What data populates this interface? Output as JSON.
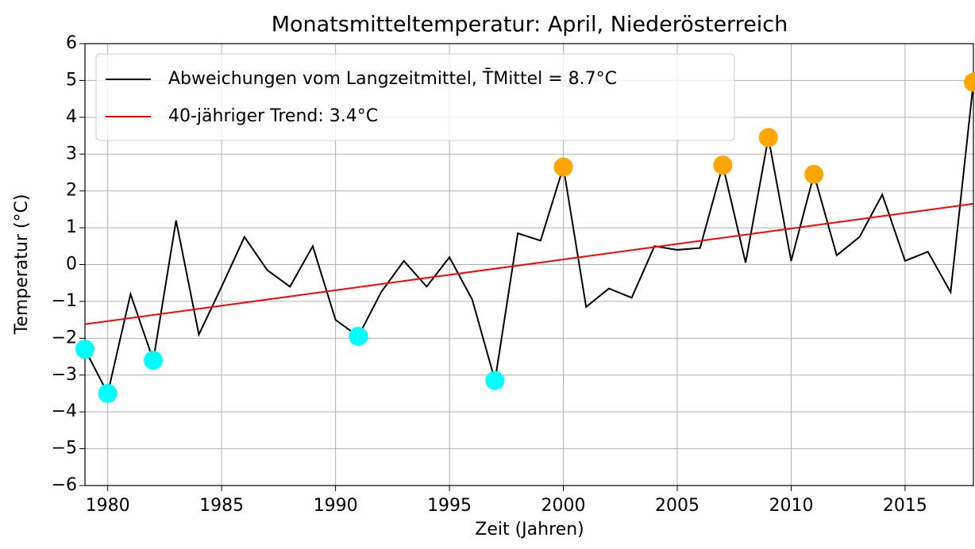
{
  "chart_data": {
    "type": "line",
    "title": "Monatsmitteltemperatur: April, Niederösterreich",
    "xlabel": "Zeit (Jahren)",
    "ylabel": "Temperatur (°C)",
    "xlim": [
      1979,
      2018
    ],
    "ylim": [
      -6,
      6
    ],
    "xticks": [
      1980,
      1985,
      1990,
      1995,
      2000,
      2005,
      2010,
      2015
    ],
    "yticks": [
      {
        "value": -6,
        "label": "−6"
      },
      {
        "value": -5,
        "label": "−5"
      },
      {
        "value": -4,
        "label": "−4"
      },
      {
        "value": -3,
        "label": "−3"
      },
      {
        "value": -2,
        "label": "−2"
      },
      {
        "value": -1,
        "label": "−1"
      },
      0,
      1,
      2,
      3,
      4,
      5,
      6
    ],
    "grid": true,
    "legend": "upper left",
    "series": [
      {
        "name": "Abweichungen vom Langzeitmittel, T̄Mittel = 8.7°C",
        "color": "#000000",
        "x": [
          1979,
          1980,
          1981,
          1982,
          1983,
          1984,
          1985,
          1986,
          1987,
          1988,
          1989,
          1990,
          1991,
          1992,
          1993,
          1994,
          1995,
          1996,
          1997,
          1998,
          1999,
          2000,
          2001,
          2002,
          2003,
          2004,
          2005,
          2006,
          2007,
          2008,
          2009,
          2010,
          2011,
          2012,
          2013,
          2014,
          2015,
          2016,
          2017,
          2018
        ],
        "values": [
          -2.3,
          -3.5,
          -0.8,
          -2.6,
          1.2,
          -1.9,
          -0.6,
          0.75,
          -0.15,
          -0.6,
          0.5,
          -1.5,
          -1.95,
          -0.75,
          0.1,
          -0.6,
          0.2,
          -0.95,
          -3.15,
          0.85,
          0.65,
          2.65,
          -1.15,
          -0.65,
          -0.9,
          0.5,
          0.4,
          0.45,
          2.7,
          0.05,
          3.45,
          0.1,
          2.45,
          0.25,
          0.75,
          1.9,
          0.1,
          0.35,
          -0.75,
          4.95
        ]
      },
      {
        "name": "40-jähriger Trend: 3.4°C",
        "color": "#ff0000",
        "x": [
          1979,
          2018
        ],
        "values": [
          -1.62,
          1.65
        ]
      }
    ],
    "markers": [
      {
        "color": "#00ffff",
        "x": [
          1979,
          1980,
          1982,
          1991,
          1997
        ]
      },
      {
        "color": "#ffa500",
        "x": [
          2000,
          2007,
          2009,
          2011,
          2018
        ]
      }
    ]
  }
}
